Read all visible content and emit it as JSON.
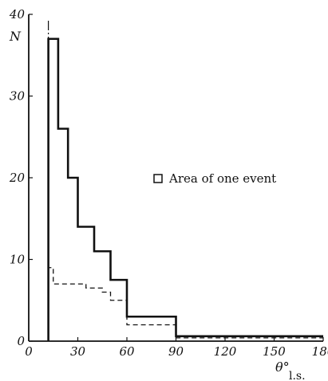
{
  "chart_data": {
    "type": "line",
    "title": "",
    "ylabel": "N",
    "xlabel": "θ°",
    "xlabel_sub": "l.s.",
    "xlim": [
      0,
      180
    ],
    "ylim": [
      0,
      40
    ],
    "x_ticks": [
      0,
      30,
      60,
      90,
      120,
      150,
      180
    ],
    "x_tick_labels": [
      "0",
      "30",
      "60",
      "90",
      "120",
      "150",
      "180"
    ],
    "y_ticks": [
      0,
      10,
      20,
      30,
      40
    ],
    "y_tick_labels": [
      "0",
      "10",
      "20",
      "30",
      "40"
    ],
    "legend": {
      "label": "Area of one event",
      "placement": "right"
    },
    "reference_line_x": 12,
    "grid": false,
    "series": [
      {
        "style": "solid",
        "bins": [
          {
            "x0": 12,
            "x1": 18,
            "y": 37
          },
          {
            "x0": 18,
            "x1": 24,
            "y": 26
          },
          {
            "x0": 24,
            "x1": 30,
            "y": 20
          },
          {
            "x0": 30,
            "x1": 40,
            "y": 14
          },
          {
            "x0": 40,
            "x1": 50,
            "y": 11
          },
          {
            "x0": 50,
            "x1": 60,
            "y": 7.5
          },
          {
            "x0": 60,
            "x1": 90,
            "y": 3
          },
          {
            "x0": 90,
            "x1": 180,
            "y": 0.6
          }
        ]
      },
      {
        "style": "dashed",
        "bins": [
          {
            "x0": 12,
            "x1": 15,
            "y": 9
          },
          {
            "x0": 15,
            "x1": 35,
            "y": 7
          },
          {
            "x0": 35,
            "x1": 45,
            "y": 6.5
          },
          {
            "x0": 45,
            "x1": 50,
            "y": 6
          },
          {
            "x0": 50,
            "x1": 60,
            "y": 5
          },
          {
            "x0": 60,
            "x1": 90,
            "y": 2
          },
          {
            "x0": 90,
            "x1": 180,
            "y": 0.4
          }
        ]
      }
    ]
  }
}
